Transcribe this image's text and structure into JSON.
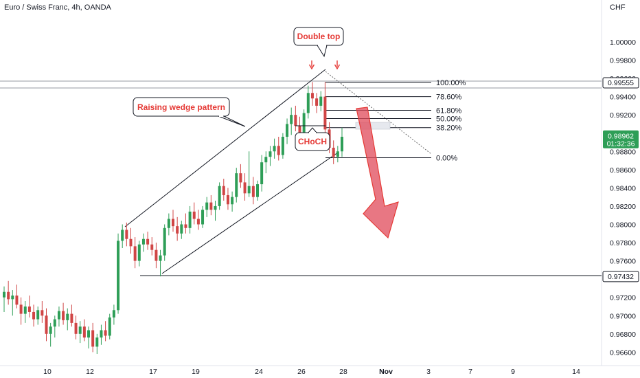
{
  "header": {
    "title": "Euro / Swiss Franc, 4h, OANDA",
    "currency": "CHF"
  },
  "colors": {
    "up": "#2e9e57",
    "down": "#d04545",
    "accent": "#e53935",
    "line": "#131722"
  },
  "annotations": {
    "double_top": "Double top",
    "wedge": "Raising wedge pattern",
    "choch": "CHoCH"
  },
  "price_badges": [
    {
      "label": "0.99555",
      "value": 0.99555,
      "style": "dark-outline"
    },
    {
      "label": "0.98962",
      "sub": "01:32:36",
      "value": 0.98962,
      "style": "green"
    },
    {
      "label": "0.97432",
      "value": 0.97432,
      "style": "dark-outline"
    }
  ],
  "chart_data": {
    "type": "candlestick",
    "symbol": "EUR/CHF",
    "timeframe": "4h",
    "y_ticks": [
      "1.00000",
      "0.99800",
      "0.99600",
      "0.99400",
      "0.99200",
      "0.99000",
      "0.98800",
      "0.98600",
      "0.98400",
      "0.98200",
      "0.98000",
      "0.97800",
      "0.97600",
      "0.97400",
      "0.97200",
      "0.97000",
      "0.96800",
      "0.96600"
    ],
    "y_tick_values": [
      1.0,
      0.998,
      0.996,
      0.994,
      0.992,
      0.99,
      0.988,
      0.986,
      0.984,
      0.982,
      0.98,
      0.978,
      0.976,
      0.974,
      0.972,
      0.97,
      0.968,
      0.966
    ],
    "x_ticks": [
      "10",
      "12",
      "17",
      "19",
      "24",
      "26",
      "28",
      "Nov",
      "3",
      "7",
      "9",
      "14"
    ],
    "ylim": [
      0.9655,
      1.0015
    ],
    "fibonacci": [
      {
        "label": "100.00%",
        "price": 0.99555
      },
      {
        "label": "78.60%",
        "price": 0.994
      },
      {
        "label": "61.80%",
        "price": 0.9925
      },
      {
        "label": "50.00%",
        "price": 0.9916
      },
      {
        "label": "38.20%",
        "price": 0.9906
      },
      {
        "label": "0.00%",
        "price": 0.9873
      }
    ],
    "levels": [
      0.99555,
      0.97432
    ],
    "candles": [
      {
        "o": 0.972,
        "h": 0.9732,
        "l": 0.9704,
        "c": 0.9726
      },
      {
        "o": 0.9726,
        "h": 0.9738,
        "l": 0.9712,
        "c": 0.9718
      },
      {
        "o": 0.9718,
        "h": 0.9728,
        "l": 0.97,
        "c": 0.9722
      },
      {
        "o": 0.9722,
        "h": 0.9734,
        "l": 0.9708,
        "c": 0.9712
      },
      {
        "o": 0.9712,
        "h": 0.972,
        "l": 0.969,
        "c": 0.9702
      },
      {
        "o": 0.9702,
        "h": 0.9716,
        "l": 0.9692,
        "c": 0.971
      },
      {
        "o": 0.971,
        "h": 0.9722,
        "l": 0.9698,
        "c": 0.9704
      },
      {
        "o": 0.9704,
        "h": 0.9712,
        "l": 0.9688,
        "c": 0.9696
      },
      {
        "o": 0.9696,
        "h": 0.971,
        "l": 0.969,
        "c": 0.9706
      },
      {
        "o": 0.9706,
        "h": 0.9716,
        "l": 0.9692,
        "c": 0.97
      },
      {
        "o": 0.97,
        "h": 0.9708,
        "l": 0.9672,
        "c": 0.968
      },
      {
        "o": 0.968,
        "h": 0.9692,
        "l": 0.9666,
        "c": 0.9688
      },
      {
        "o": 0.9688,
        "h": 0.97,
        "l": 0.9676,
        "c": 0.9696
      },
      {
        "o": 0.9696,
        "h": 0.971,
        "l": 0.9688,
        "c": 0.9705
      },
      {
        "o": 0.9705,
        "h": 0.9714,
        "l": 0.969,
        "c": 0.9695
      },
      {
        "o": 0.9695,
        "h": 0.9708,
        "l": 0.9684,
        "c": 0.9702
      },
      {
        "o": 0.9702,
        "h": 0.9712,
        "l": 0.9688,
        "c": 0.9692
      },
      {
        "o": 0.9692,
        "h": 0.97,
        "l": 0.9674,
        "c": 0.968
      },
      {
        "o": 0.968,
        "h": 0.9694,
        "l": 0.967,
        "c": 0.9688
      },
      {
        "o": 0.9688,
        "h": 0.9696,
        "l": 0.9672,
        "c": 0.9676
      },
      {
        "o": 0.9676,
        "h": 0.9688,
        "l": 0.9664,
        "c": 0.9684
      },
      {
        "o": 0.9684,
        "h": 0.9692,
        "l": 0.966,
        "c": 0.9666
      },
      {
        "o": 0.9666,
        "h": 0.968,
        "l": 0.9658,
        "c": 0.9676
      },
      {
        "o": 0.9676,
        "h": 0.969,
        "l": 0.9668,
        "c": 0.9684
      },
      {
        "o": 0.9684,
        "h": 0.9694,
        "l": 0.9672,
        "c": 0.9678
      },
      {
        "o": 0.9678,
        "h": 0.9702,
        "l": 0.9674,
        "c": 0.9698
      },
      {
        "o": 0.9698,
        "h": 0.9712,
        "l": 0.969,
        "c": 0.9706
      },
      {
        "o": 0.9706,
        "h": 0.979,
        "l": 0.9702,
        "c": 0.9782
      },
      {
        "o": 0.9782,
        "h": 0.98,
        "l": 0.9774,
        "c": 0.9794
      },
      {
        "o": 0.9794,
        "h": 0.9802,
        "l": 0.9776,
        "c": 0.9784
      },
      {
        "o": 0.9784,
        "h": 0.9796,
        "l": 0.9768,
        "c": 0.9776
      },
      {
        "o": 0.9776,
        "h": 0.9786,
        "l": 0.9752,
        "c": 0.976
      },
      {
        "o": 0.976,
        "h": 0.9782,
        "l": 0.9754,
        "c": 0.9778
      },
      {
        "o": 0.9778,
        "h": 0.979,
        "l": 0.977,
        "c": 0.9784
      },
      {
        "o": 0.9784,
        "h": 0.9792,
        "l": 0.9772,
        "c": 0.9778
      },
      {
        "o": 0.9778,
        "h": 0.9786,
        "l": 0.9766,
        "c": 0.9772
      },
      {
        "o": 0.9772,
        "h": 0.978,
        "l": 0.9752,
        "c": 0.976
      },
      {
        "o": 0.976,
        "h": 0.9772,
        "l": 0.9743,
        "c": 0.9766
      },
      {
        "o": 0.9766,
        "h": 0.98,
        "l": 0.976,
        "c": 0.9796
      },
      {
        "o": 0.9796,
        "h": 0.9812,
        "l": 0.9788,
        "c": 0.9806
      },
      {
        "o": 0.9806,
        "h": 0.9816,
        "l": 0.9792,
        "c": 0.9798
      },
      {
        "o": 0.9798,
        "h": 0.9808,
        "l": 0.9782,
        "c": 0.979
      },
      {
        "o": 0.979,
        "h": 0.9804,
        "l": 0.9784,
        "c": 0.98
      },
      {
        "o": 0.98,
        "h": 0.9812,
        "l": 0.979,
        "c": 0.9796
      },
      {
        "o": 0.9796,
        "h": 0.982,
        "l": 0.979,
        "c": 0.9814
      },
      {
        "o": 0.9814,
        "h": 0.9824,
        "l": 0.98,
        "c": 0.9806
      },
      {
        "o": 0.9806,
        "h": 0.9816,
        "l": 0.9794,
        "c": 0.98
      },
      {
        "o": 0.98,
        "h": 0.982,
        "l": 0.9796,
        "c": 0.9816
      },
      {
        "o": 0.9816,
        "h": 0.983,
        "l": 0.9808,
        "c": 0.9824
      },
      {
        "o": 0.9824,
        "h": 0.9832,
        "l": 0.981,
        "c": 0.9816
      },
      {
        "o": 0.9816,
        "h": 0.9826,
        "l": 0.9804,
        "c": 0.982
      },
      {
        "o": 0.982,
        "h": 0.9846,
        "l": 0.9816,
        "c": 0.9842
      },
      {
        "o": 0.9842,
        "h": 0.985,
        "l": 0.9826,
        "c": 0.9832
      },
      {
        "o": 0.9832,
        "h": 0.984,
        "l": 0.9816,
        "c": 0.9822
      },
      {
        "o": 0.9822,
        "h": 0.9836,
        "l": 0.9814,
        "c": 0.983
      },
      {
        "o": 0.983,
        "h": 0.9862,
        "l": 0.9824,
        "c": 0.9856
      },
      {
        "o": 0.9856,
        "h": 0.9866,
        "l": 0.984,
        "c": 0.9846
      },
      {
        "o": 0.9846,
        "h": 0.9856,
        "l": 0.9826,
        "c": 0.9834
      },
      {
        "o": 0.9834,
        "h": 0.988,
        "l": 0.983,
        "c": 0.9842
      },
      {
        "o": 0.9842,
        "h": 0.9852,
        "l": 0.9822,
        "c": 0.983
      },
      {
        "o": 0.983,
        "h": 0.9848,
        "l": 0.9826,
        "c": 0.9844
      },
      {
        "o": 0.9844,
        "h": 0.9876,
        "l": 0.9836,
        "c": 0.9868
      },
      {
        "o": 0.9868,
        "h": 0.988,
        "l": 0.9856,
        "c": 0.9874
      },
      {
        "o": 0.9874,
        "h": 0.9886,
        "l": 0.9864,
        "c": 0.988
      },
      {
        "o": 0.988,
        "h": 0.9894,
        "l": 0.9872,
        "c": 0.9886
      },
      {
        "o": 0.9886,
        "h": 0.9896,
        "l": 0.987,
        "c": 0.9876
      },
      {
        "o": 0.9876,
        "h": 0.99,
        "l": 0.9872,
        "c": 0.9896
      },
      {
        "o": 0.9896,
        "h": 0.9916,
        "l": 0.9888,
        "c": 0.991
      },
      {
        "o": 0.991,
        "h": 0.9928,
        "l": 0.9898,
        "c": 0.992
      },
      {
        "o": 0.992,
        "h": 0.993,
        "l": 0.9902,
        "c": 0.9908
      },
      {
        "o": 0.9908,
        "h": 0.9918,
        "l": 0.9892,
        "c": 0.99
      },
      {
        "o": 0.99,
        "h": 0.9926,
        "l": 0.9896,
        "c": 0.9922
      },
      {
        "o": 0.9922,
        "h": 0.9952,
        "l": 0.9916,
        "c": 0.9944
      },
      {
        "o": 0.9944,
        "h": 0.9956,
        "l": 0.993,
        "c": 0.9938
      },
      {
        "o": 0.9938,
        "h": 0.9944,
        "l": 0.9922,
        "c": 0.993
      },
      {
        "o": 0.993,
        "h": 0.9946,
        "l": 0.9924,
        "c": 0.994
      },
      {
        "o": 0.994,
        "h": 0.9956,
        "l": 0.9898,
        "c": 0.9904
      },
      {
        "o": 0.9904,
        "h": 0.9912,
        "l": 0.9878,
        "c": 0.9884
      },
      {
        "o": 0.9884,
        "h": 0.9892,
        "l": 0.9866,
        "c": 0.9874
      },
      {
        "o": 0.9874,
        "h": 0.9886,
        "l": 0.9868,
        "c": 0.988
      },
      {
        "o": 0.988,
        "h": 0.9906,
        "l": 0.9874,
        "c": 0.9896
      }
    ]
  }
}
